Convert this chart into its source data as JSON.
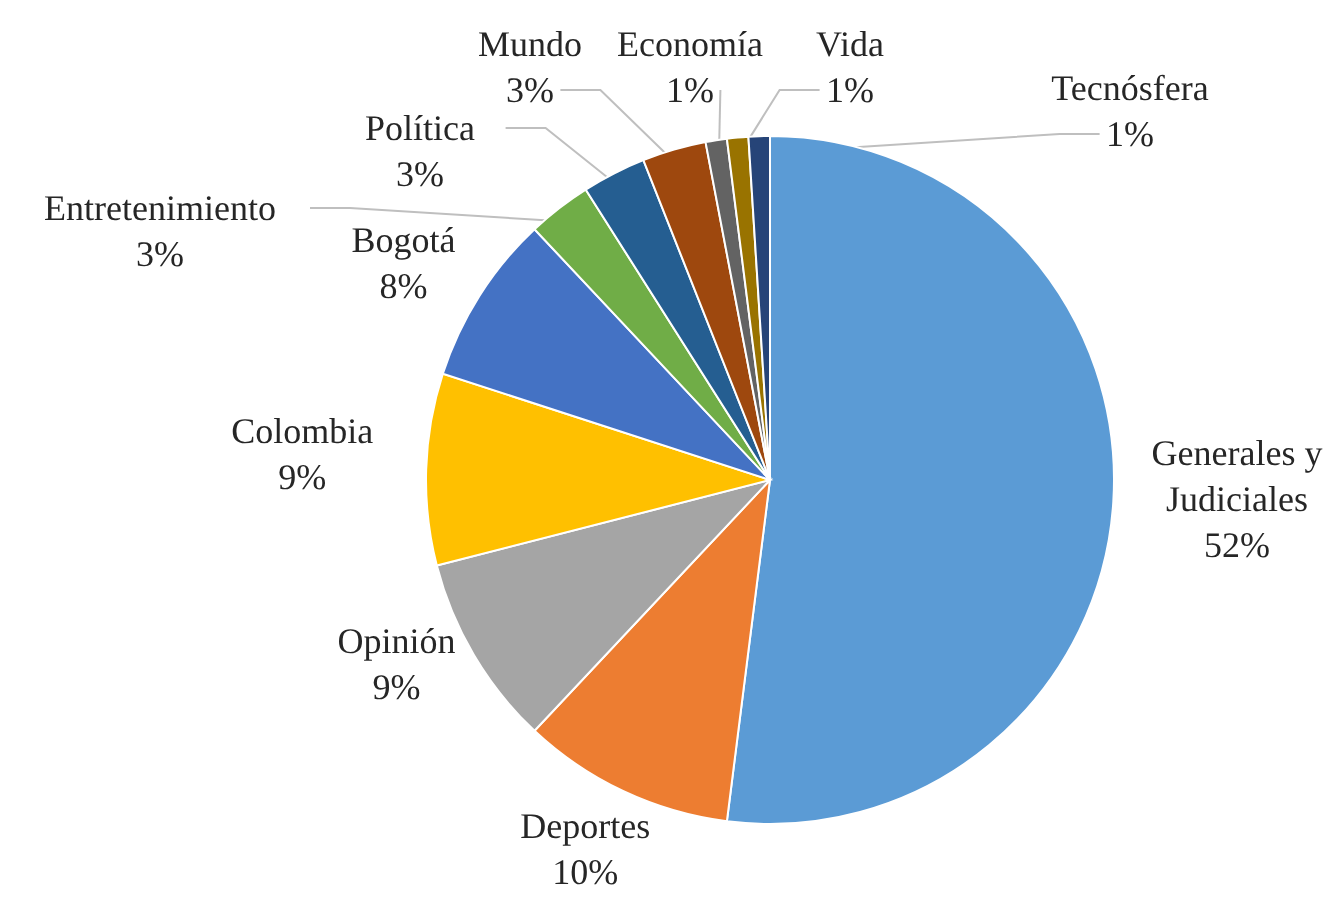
{
  "chart_data": {
    "type": "pie",
    "categories": [
      "Generales y Judiciales",
      "Deportes",
      "Opinión",
      "Colombia",
      "Bogotá",
      "Entretenimiento",
      "Política",
      "Mundo",
      "Economía",
      "Vida",
      "Tecnósfera"
    ],
    "values": [
      52,
      10,
      9,
      9,
      8,
      3,
      3,
      3,
      1,
      1,
      1
    ],
    "value_labels": [
      "52%",
      "10%",
      "9%",
      "9%",
      "8%",
      "3%",
      "3%",
      "3%",
      "1%",
      "1%",
      "1%"
    ],
    "colors": [
      "#5b9bd5",
      "#ed7d31",
      "#a5a5a5",
      "#ffc000",
      "#4472c4",
      "#70ad47",
      "#255e91",
      "#9e480e",
      "#636363",
      "#997300",
      "#264478"
    ],
    "legend": false
  }
}
